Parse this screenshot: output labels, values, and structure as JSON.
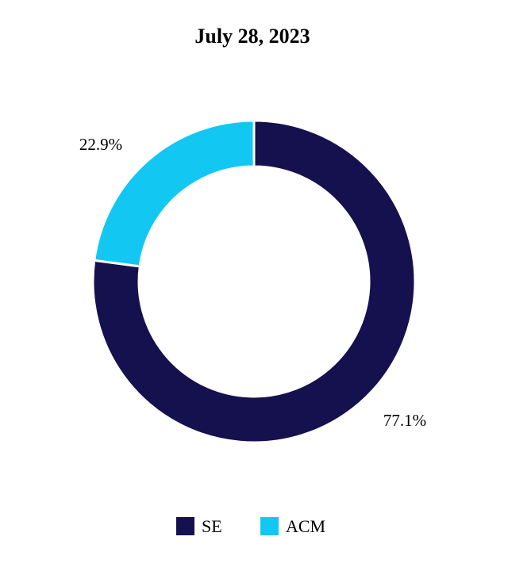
{
  "chart_data": {
    "type": "pie",
    "variant": "donut",
    "title": "July 28, 2023",
    "categories": [
      "SE",
      "ACM"
    ],
    "values": [
      77.1,
      22.9
    ],
    "value_labels": [
      "77.1%",
      "22.9%"
    ],
    "colors": [
      "#15104e",
      "#12c8f2"
    ],
    "legend": {
      "placement": "bottom",
      "entries": [
        "SE",
        "ACM"
      ]
    },
    "grid": false
  }
}
